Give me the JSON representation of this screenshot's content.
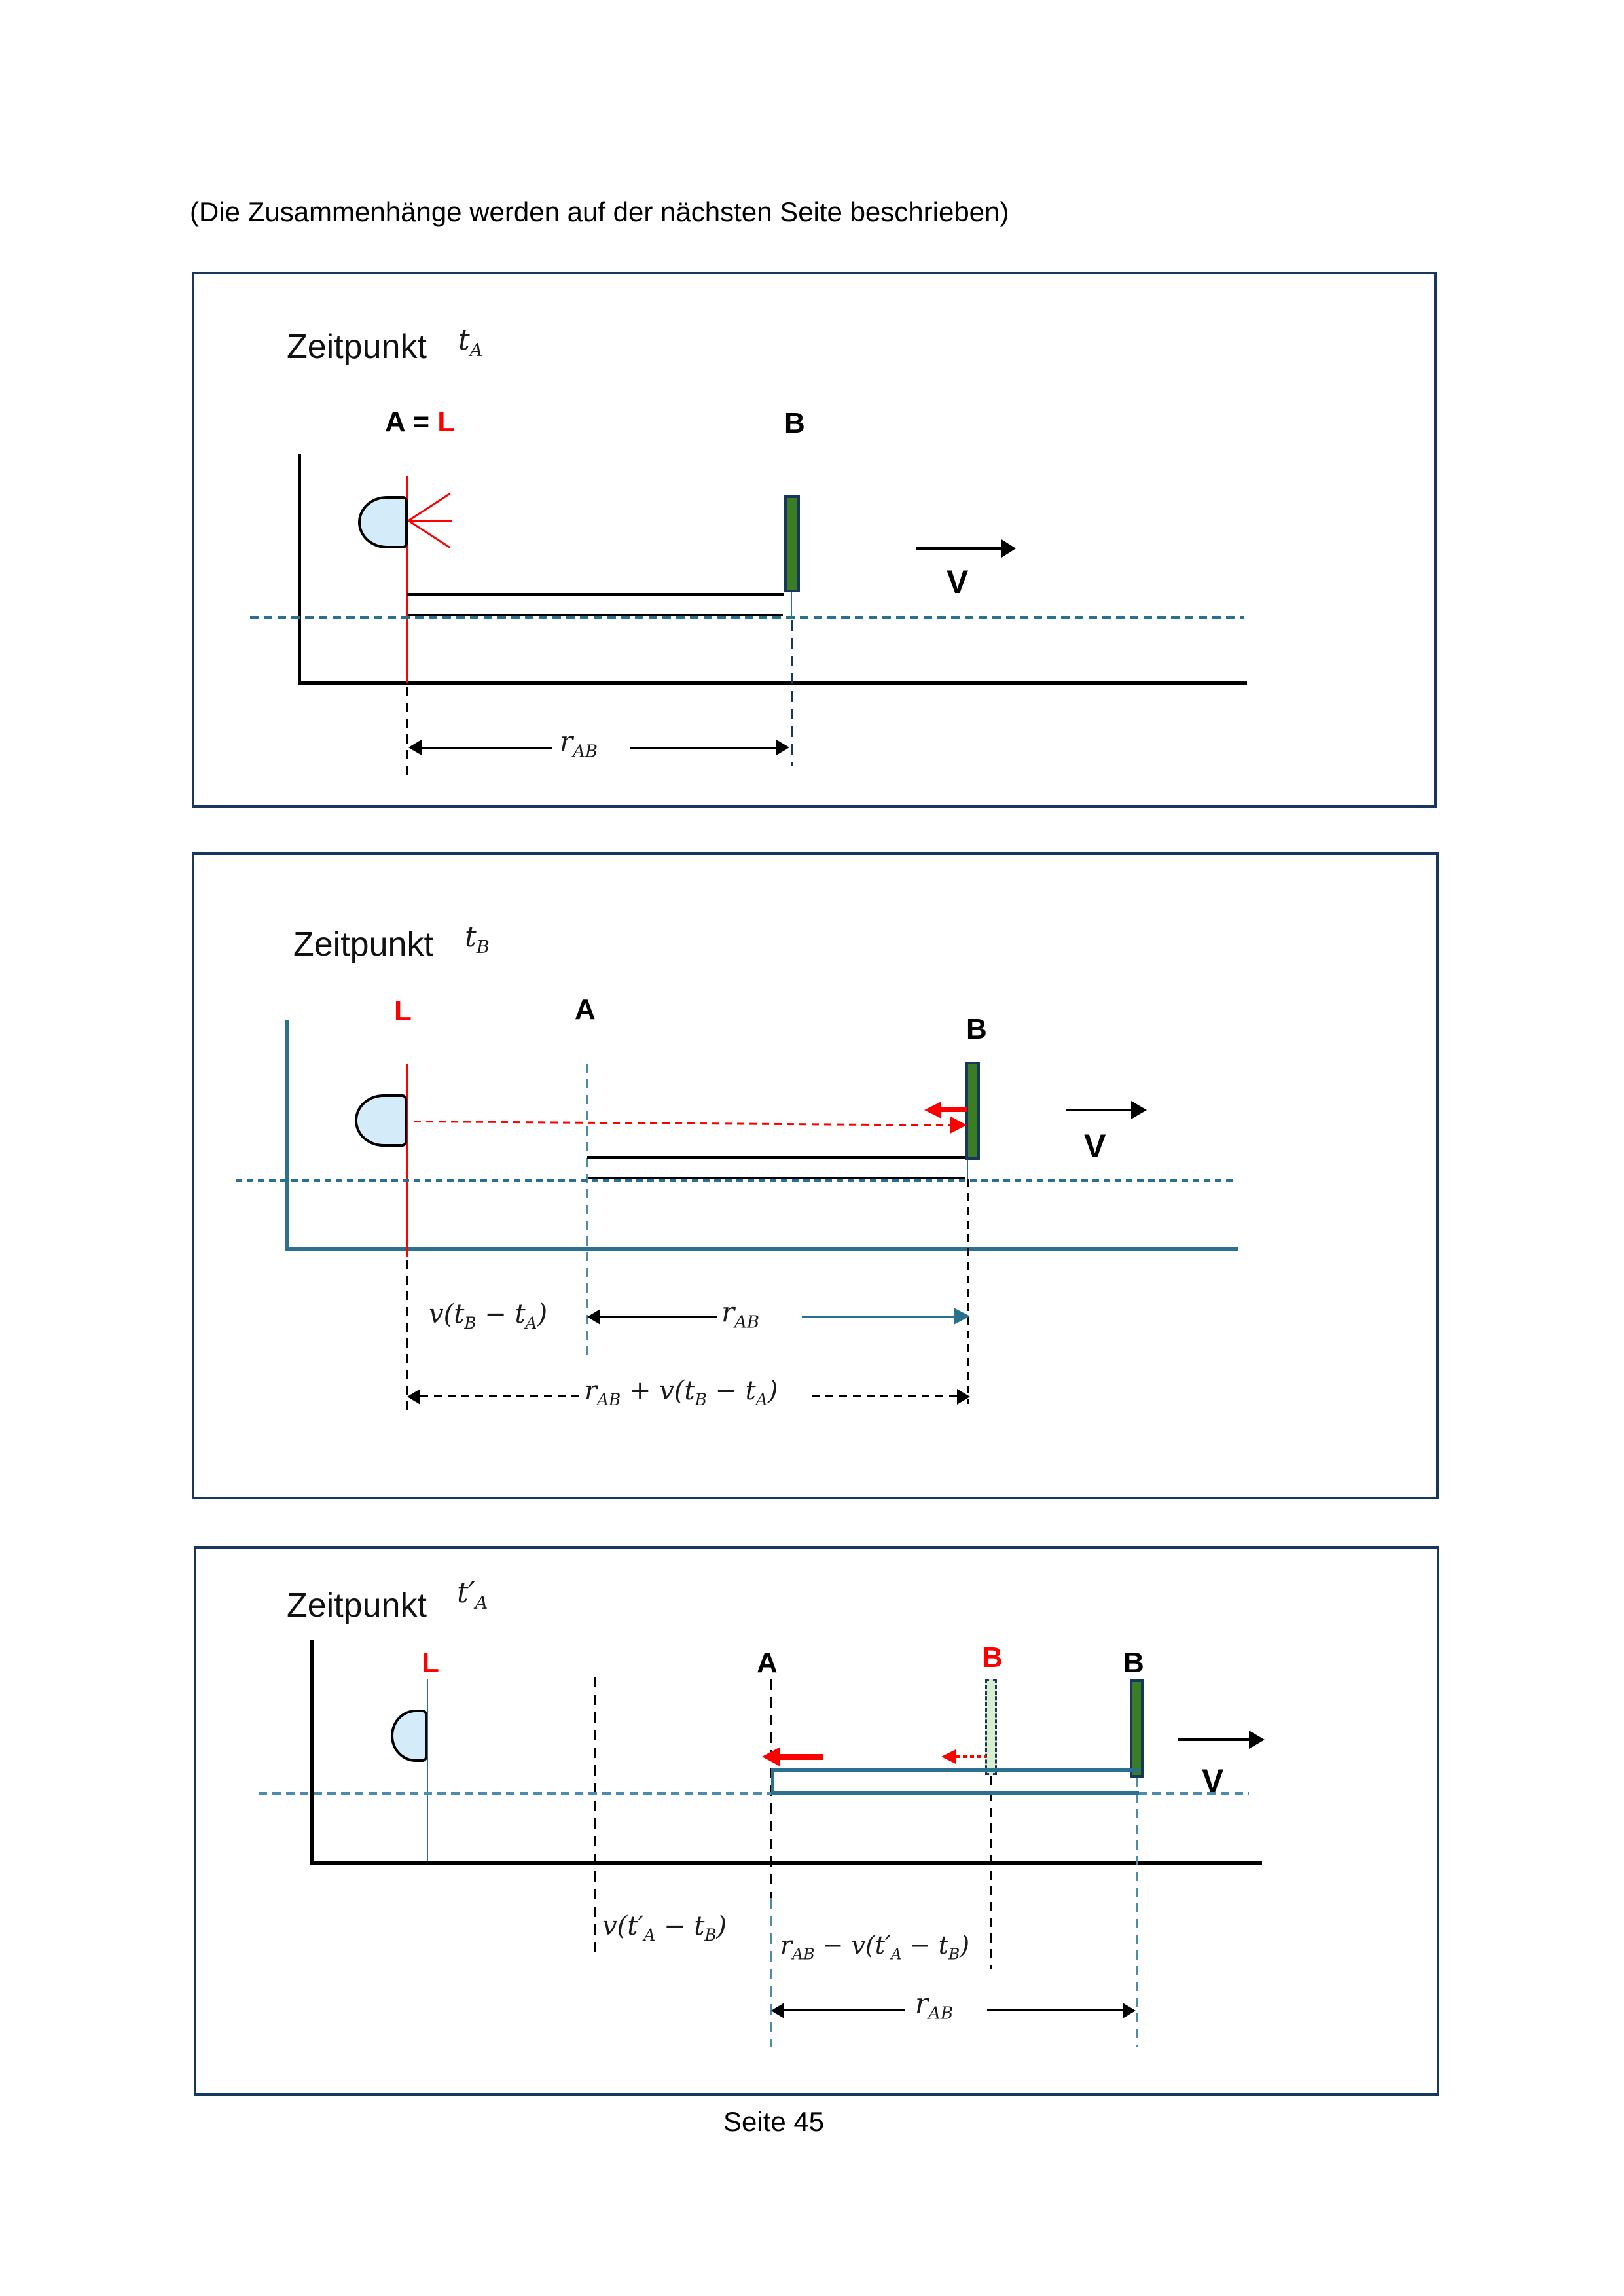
{
  "colors": {
    "navy": "#17375e",
    "teal": "#2a7190",
    "steel": "#4b8bab",
    "green": "#3a7d23",
    "ghost": "#d9eecf",
    "lamp": "#d4ecf9",
    "red": "#ff0000"
  },
  "page": {
    "note": "(Die Zusammenhänge werden auf der nächsten Seite beschrieben)",
    "footer": "Seite 45"
  },
  "panel1": {
    "title": "Zeitpunkt",
    "title_math": [
      {
        "t": "t"
      },
      {
        "s": "A"
      }
    ],
    "label_a_prefix": "A = ",
    "label_a_l": "L",
    "label_b": "B",
    "v_label": "V",
    "f_rab": [
      {
        "t": "r"
      },
      {
        "s": "AB"
      }
    ]
  },
  "panel2": {
    "title": "Zeitpunkt",
    "title_math": [
      {
        "t": "t"
      },
      {
        "s": "B"
      }
    ],
    "label_l": "L",
    "label_a": "A",
    "label_b": "B",
    "v_label": "V",
    "f_vt": [
      {
        "t": "v(t"
      },
      {
        "s": "B"
      },
      {
        "t": " − t"
      },
      {
        "s": "A"
      },
      {
        "t": ")"
      }
    ],
    "f_rab": [
      {
        "t": "r"
      },
      {
        "s": "AB"
      }
    ],
    "f_sum": [
      {
        "t": "r"
      },
      {
        "s": "AB"
      },
      {
        "t": " + v(t"
      },
      {
        "s": "B"
      },
      {
        "t": " − t"
      },
      {
        "s": "A"
      },
      {
        "t": ")"
      }
    ]
  },
  "panel3": {
    "title": "Zeitpunkt",
    "title_math": [
      {
        "t": "t′"
      },
      {
        "s": "A"
      }
    ],
    "label_l": "L",
    "label_a": "A",
    "label_b_ghost": "B",
    "label_b": "B",
    "v_label": "V",
    "f_vt": [
      {
        "t": "v(t′"
      },
      {
        "s": "A"
      },
      {
        "t": " − t"
      },
      {
        "s": "B"
      },
      {
        "t": ")"
      }
    ],
    "f_diff": [
      {
        "t": "r"
      },
      {
        "s": "AB"
      },
      {
        "t": " − v(t′"
      },
      {
        "s": "A"
      },
      {
        "t": " − t"
      },
      {
        "s": "B"
      },
      {
        "t": ")"
      }
    ],
    "f_rab": [
      {
        "t": "r"
      },
      {
        "s": "AB"
      }
    ]
  }
}
